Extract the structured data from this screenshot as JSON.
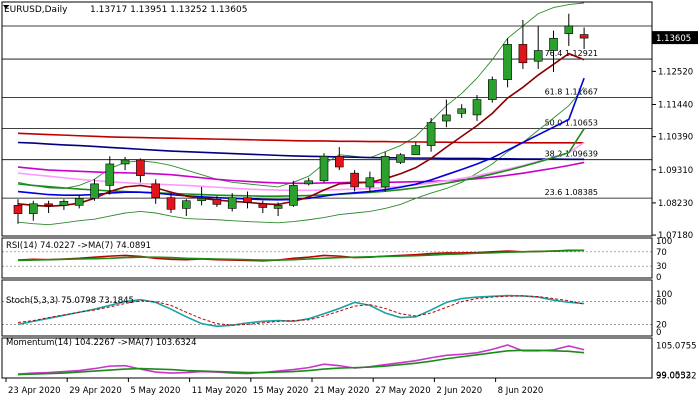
{
  "chart_data": {
    "type": "candlestick",
    "symbol_label": "EURUSD,Daily",
    "ohlc_label": "1.13717 1.13951 1.13252 1.13605",
    "price_axis": {
      "ylim": [
        1.0715,
        1.1475
      ],
      "ticks": [
        "1.13605",
        "1.12520",
        "1.11440",
        "1.10390",
        "1.09310",
        "1.08230",
        "1.07180"
      ],
      "tick_values": [
        1.13605,
        1.1252,
        1.1144,
        1.1039,
        1.0931,
        1.0823,
        1.0718
      ]
    },
    "x_ticks": [
      {
        "label": "23 Apr 2020",
        "index": 0
      },
      {
        "label": "29 Apr 2020",
        "index": 4
      },
      {
        "label": "5 May 2020",
        "index": 8
      },
      {
        "label": "11 May 2020",
        "index": 12
      },
      {
        "label": "15 May 2020",
        "index": 16
      },
      {
        "label": "21 May 2020",
        "index": 20
      },
      {
        "label": "27 May 2020",
        "index": 24
      },
      {
        "label": "2 Jun 2020",
        "index": 28
      },
      {
        "label": "8 Jun 2020",
        "index": 32
      }
    ],
    "candles": [
      {
        "o": 1.0815,
        "h": 1.0835,
        "l": 1.0755,
        "c": 1.0788
      },
      {
        "o": 1.0788,
        "h": 1.083,
        "l": 1.0765,
        "c": 1.082
      },
      {
        "o": 1.082,
        "h": 1.083,
        "l": 1.079,
        "c": 1.0815
      },
      {
        "o": 1.0815,
        "h": 1.0835,
        "l": 1.08,
        "c": 1.0828
      },
      {
        "o": 1.0815,
        "h": 1.085,
        "l": 1.0805,
        "c": 1.0838
      },
      {
        "o": 1.0838,
        "h": 1.09,
        "l": 1.083,
        "c": 1.0885
      },
      {
        "o": 1.088,
        "h": 1.0975,
        "l": 1.085,
        "c": 1.095
      },
      {
        "o": 1.095,
        "h": 1.0973,
        "l": 1.093,
        "c": 1.0963
      },
      {
        "o": 1.0963,
        "h": 1.0968,
        "l": 1.089,
        "c": 1.0912
      },
      {
        "o": 1.0885,
        "h": 1.09,
        "l": 1.082,
        "c": 1.084
      },
      {
        "o": 1.084,
        "h": 1.0855,
        "l": 1.079,
        "c": 1.0802
      },
      {
        "o": 1.0805,
        "h": 1.0835,
        "l": 1.078,
        "c": 1.083
      },
      {
        "o": 1.083,
        "h": 1.0875,
        "l": 1.0815,
        "c": 1.0838
      },
      {
        "o": 1.0835,
        "h": 1.0845,
        "l": 1.081,
        "c": 1.0818
      },
      {
        "o": 1.0805,
        "h": 1.0855,
        "l": 1.0795,
        "c": 1.084
      },
      {
        "o": 1.084,
        "h": 1.086,
        "l": 1.0805,
        "c": 1.0825
      },
      {
        "o": 1.082,
        "h": 1.083,
        "l": 1.079,
        "c": 1.0808
      },
      {
        "o": 1.0805,
        "h": 1.0825,
        "l": 1.078,
        "c": 1.0815
      },
      {
        "o": 1.0815,
        "h": 1.0895,
        "l": 1.081,
        "c": 1.088
      },
      {
        "o": 1.0885,
        "h": 1.0905,
        "l": 1.088,
        "c": 1.0895
      },
      {
        "o": 1.0895,
        "h": 1.0985,
        "l": 1.089,
        "c": 1.0975
      },
      {
        "o": 1.0975,
        "h": 1.1005,
        "l": 1.093,
        "c": 1.094
      },
      {
        "o": 1.092,
        "h": 1.093,
        "l": 1.086,
        "c": 1.0875
      },
      {
        "o": 1.0875,
        "h": 1.0925,
        "l": 1.086,
        "c": 1.0905
      },
      {
        "o": 1.0875,
        "h": 1.099,
        "l": 1.086,
        "c": 1.0975
      },
      {
        "o": 1.0955,
        "h": 1.0985,
        "l": 1.095,
        "c": 1.098
      },
      {
        "o": 1.098,
        "h": 1.102,
        "l": 1.0985,
        "c": 1.101
      },
      {
        "o": 1.101,
        "h": 1.11,
        "l": 1.099,
        "c": 1.1085
      },
      {
        "o": 1.109,
        "h": 1.116,
        "l": 1.107,
        "c": 1.111
      },
      {
        "o": 1.1115,
        "h": 1.1145,
        "l": 1.11,
        "c": 1.113
      },
      {
        "o": 1.111,
        "h": 1.1175,
        "l": 1.109,
        "c": 1.116
      },
      {
        "o": 1.116,
        "h": 1.1235,
        "l": 1.115,
        "c": 1.1225
      },
      {
        "o": 1.1225,
        "h": 1.136,
        "l": 1.12,
        "c": 1.134
      },
      {
        "o": 1.134,
        "h": 1.142,
        "l": 1.126,
        "c": 1.128
      },
      {
        "o": 1.1285,
        "h": 1.14,
        "l": 1.126,
        "c": 1.132
      },
      {
        "o": 1.132,
        "h": 1.1385,
        "l": 1.125,
        "c": 1.136
      },
      {
        "o": 1.1375,
        "h": 1.144,
        "l": 1.1335,
        "c": 1.14
      },
      {
        "o": 1.1372,
        "h": 1.1395,
        "l": 1.1325,
        "c": 1.13605
      }
    ],
    "bull_color": "#2ca02c",
    "bear_color": "#e0141a",
    "fib_levels": [
      {
        "label": "76.4 1.12921",
        "value": 1.12921
      },
      {
        "label": "61.8 1.11667",
        "value": 1.11667
      },
      {
        "label": "50.0 1.10653",
        "value": 1.10653
      },
      {
        "label": "38.2 1.09639",
        "value": 1.09639
      },
      {
        "label": "23.6 1.08385",
        "value": 1.08385
      }
    ],
    "horizontal_lines": [
      1.14
    ],
    "current_price_label": "1.13605",
    "moving_averages": [
      {
        "color": "#c00000",
        "values": [
          1.105,
          1.1048,
          1.1046,
          1.1044,
          1.1042,
          1.104,
          1.1038,
          1.1037,
          1.1036,
          1.1035,
          1.1034,
          1.1033,
          1.1032,
          1.1031,
          1.103,
          1.1029,
          1.1028,
          1.1027,
          1.1026,
          1.1025,
          1.1025,
          1.1024,
          1.1024,
          1.1023,
          1.1023,
          1.1022,
          1.1022,
          1.1021,
          1.1021,
          1.102,
          1.102,
          1.102,
          1.102,
          1.1019,
          1.1019,
          1.1019,
          1.1019,
          1.1019
        ]
      },
      {
        "color": "#000080",
        "values": [
          1.102,
          1.1018,
          1.1015,
          1.1012,
          1.101,
          1.1007,
          1.1004,
          1.1001,
          1.0998,
          1.0995,
          1.0992,
          1.099,
          1.0988,
          1.0986,
          1.0984,
          1.0982,
          1.098,
          1.0978,
          1.0976,
          1.0975,
          1.0974,
          1.0973,
          1.0972,
          1.0971,
          1.097,
          1.097,
          1.0969,
          1.0969,
          1.0968,
          1.0968,
          1.0968,
          1.0967,
          1.0967,
          1.0966,
          1.0966,
          1.0966,
          1.0965,
          1.0965
        ]
      },
      {
        "color": "#cc00cc",
        "values": [
          1.094,
          1.0935,
          1.093,
          1.0928,
          1.0926,
          1.0924,
          1.0922,
          1.0921,
          1.092,
          1.0918,
          1.0915,
          1.091,
          1.0905,
          1.09,
          1.0896,
          1.0893,
          1.089,
          1.0888,
          1.0887,
          1.0887,
          1.0888,
          1.0889,
          1.089,
          1.089,
          1.089,
          1.0891,
          1.0892,
          1.0893,
          1.0895,
          1.0898,
          1.0902,
          1.0907,
          1.0913,
          1.092,
          1.0928,
          1.0936,
          1.0945,
          1.0955
        ]
      },
      {
        "color": "#ff99ff",
        "values": [
          1.092,
          1.0915,
          1.091,
          1.0905,
          1.09,
          1.0896,
          1.0892,
          1.0889,
          1.0886,
          1.0884,
          1.0882,
          1.088,
          1.0877,
          1.0874,
          1.0871,
          1.0868,
          1.0866,
          1.0865,
          1.0864,
          1.0864,
          1.0865,
          1.0866,
          1.0868,
          1.087,
          1.0873,
          1.0877,
          1.0882,
          1.0888,
          1.0895,
          1.0903,
          1.0912,
          1.0922,
          1.0933,
          1.0945,
          1.0958,
          1.0972,
          1.0987,
          1.102
        ]
      },
      {
        "color": "#1a8c1a",
        "values": [
          1.0885,
          1.088,
          1.0876,
          1.0872,
          1.0868,
          1.0865,
          1.0862,
          1.086,
          1.0858,
          1.0856,
          1.0854,
          1.0852,
          1.085,
          1.0848,
          1.0847,
          1.0846,
          1.0845,
          1.0845,
          1.0846,
          1.0847,
          1.0849,
          1.0851,
          1.0854,
          1.0857,
          1.0861,
          1.0866,
          1.0872,
          1.0879,
          1.0887,
          1.0896,
          1.0906,
          1.0917,
          1.0929,
          1.0942,
          1.0956,
          1.0971,
          1.0987,
          1.1065
        ]
      },
      {
        "color": "#0000dd",
        "values": [
          1.086,
          1.0855,
          1.085,
          1.0848,
          1.0848,
          1.085,
          1.0855,
          1.0858,
          1.0858,
          1.0855,
          1.085,
          1.0846,
          1.0843,
          1.084,
          1.0838,
          1.0836,
          1.0834,
          1.0833,
          1.0834,
          1.0838,
          1.0845,
          1.0852,
          1.0856,
          1.086,
          1.0866,
          1.0874,
          1.0884,
          1.0898,
          1.0915,
          1.0932,
          1.095,
          1.097,
          1.0995,
          1.102,
          1.1045,
          1.107,
          1.1095,
          1.123
        ]
      },
      {
        "color": "#8b0000",
        "values": [
          1.082,
          1.0815,
          1.0812,
          1.0815,
          1.0822,
          1.0838,
          1.086,
          1.0875,
          1.088,
          1.0872,
          1.0858,
          1.0845,
          1.0838,
          1.0832,
          1.0828,
          1.0825,
          1.082,
          1.0818,
          1.0828,
          1.0842,
          1.0865,
          1.0885,
          1.0888,
          1.089,
          1.0902,
          1.0918,
          1.0938,
          1.0968,
          1.1005,
          1.104,
          1.1075,
          1.1115,
          1.1165,
          1.12,
          1.124,
          1.1275,
          1.131,
          1.129
        ]
      }
    ],
    "bands": {
      "color": "#2e8b2e",
      "upper": [
        1.089,
        1.088,
        1.0872,
        1.087,
        1.088,
        1.09,
        1.0935,
        1.0955,
        1.096,
        1.0955,
        1.0945,
        1.093,
        1.0915,
        1.09,
        1.089,
        1.0885,
        1.088,
        1.0875,
        1.089,
        1.091,
        1.095,
        1.098,
        1.0975,
        1.097,
        1.099,
        1.101,
        1.104,
        1.109,
        1.114,
        1.118,
        1.123,
        1.129,
        1.136,
        1.14,
        1.144,
        1.146,
        1.147,
        1.1475
      ],
      "lower": [
        1.076,
        1.0755,
        1.0752,
        1.0758,
        1.0765,
        1.077,
        1.078,
        1.079,
        1.0795,
        1.079,
        1.078,
        1.0772,
        1.077,
        1.0768,
        1.0765,
        1.0762,
        1.076,
        1.0758,
        1.0762,
        1.0768,
        1.0775,
        1.0785,
        1.079,
        1.0795,
        1.0805,
        1.0818,
        1.0838,
        1.0855,
        1.087,
        1.089,
        1.092,
        1.095,
        1.099,
        1.102,
        1.106,
        1.11,
        1.114,
        1.12
      ]
    },
    "rsi_panel": {
      "label": "RSI(14) 74.0227  ->MA(7) 74.0891",
      "ylim": [
        0,
        100
      ],
      "ticks": [
        {
          "label": "100",
          "value": 100
        },
        {
          "label": "70",
          "value": 70
        },
        {
          "label": "30",
          "value": 30
        },
        {
          "label": "0",
          "value": 0
        }
      ],
      "level_lines": [
        70,
        30
      ],
      "series": [
        {
          "color": "#c00000",
          "values": [
            47,
            49,
            48,
            50,
            52,
            55,
            58,
            60,
            57,
            52,
            49,
            48,
            50,
            48,
            47,
            46,
            45,
            47,
            52,
            55,
            60,
            58,
            54,
            55,
            58,
            60,
            62,
            65,
            67,
            67,
            68,
            70,
            72,
            70,
            71,
            72,
            74,
            74
          ]
        },
        {
          "color": "#1a8c1a",
          "values": [
            46,
            47,
            48,
            49,
            50,
            51,
            52,
            54,
            55,
            55,
            54,
            52,
            51,
            50,
            49,
            48,
            47,
            47,
            48,
            50,
            52,
            54,
            55,
            56,
            57,
            58,
            59,
            61,
            63,
            64,
            66,
            67,
            69,
            70,
            71,
            72,
            73,
            74
          ]
        }
      ]
    },
    "stoch_panel": {
      "label": "Stoch(5,3,3) 75.0798 73.1845",
      "ylim": [
        0,
        100
      ],
      "ticks": [
        {
          "label": "100",
          "value": 100
        },
        {
          "label": "80",
          "value": 80
        },
        {
          "label": "20",
          "value": 20
        },
        {
          "label": "0",
          "value": 0
        }
      ],
      "level_lines": [
        80,
        20
      ],
      "series": [
        {
          "color": "#1aa3a3",
          "values": [
            20,
            28,
            36,
            44,
            52,
            60,
            70,
            80,
            85,
            78,
            60,
            40,
            22,
            15,
            18,
            24,
            28,
            30,
            28,
            35,
            48,
            62,
            78,
            70,
            50,
            38,
            40,
            58,
            78,
            88,
            92,
            94,
            96,
            95,
            92,
            84,
            78,
            75
          ]
        },
        {
          "color": "#c00000",
          "dashed": true,
          "values": [
            25,
            30,
            38,
            45,
            52,
            58,
            66,
            75,
            82,
            80,
            70,
            52,
            35,
            22,
            18,
            20,
            24,
            28,
            30,
            32,
            42,
            55,
            68,
            72,
            62,
            48,
            42,
            50,
            65,
            80,
            88,
            92,
            94,
            95,
            93,
            88,
            82,
            73
          ]
        }
      ]
    },
    "momentum_panel": {
      "label": "Momentum(14) 104.2267  ->MA(7) 103.6324",
      "ylim": [
        98.9,
        106.2
      ],
      "ticks": [
        {
          "label": "105.0755",
          "value": 105.0755
        },
        {
          "label": "99.0532",
          "value": 99.0532
        },
        {
          "label": "99.00532",
          "value": 99.00532
        }
      ],
      "series": [
        {
          "color": "#cc33cc",
          "values": [
            99.3,
            99.5,
            99.6,
            99.8,
            100.0,
            100.4,
            100.9,
            101.0,
            100.3,
            99.7,
            99.5,
            99.6,
            99.8,
            99.7,
            99.5,
            99.4,
            99.6,
            99.9,
            100.2,
            100.6,
            101.3,
            101.0,
            100.5,
            100.8,
            101.2,
            101.6,
            102.0,
            102.6,
            103.1,
            103.3,
            103.6,
            104.3,
            105.2,
            104.0,
            104.0,
            104.2,
            105.0,
            104.23
          ]
        },
        {
          "color": "#1a8c1a",
          "values": [
            99.2,
            99.3,
            99.4,
            99.5,
            99.7,
            99.9,
            100.1,
            100.3,
            100.4,
            100.3,
            100.2,
            100.0,
            99.9,
            99.8,
            99.7,
            99.6,
            99.6,
            99.7,
            99.8,
            100.0,
            100.3,
            100.5,
            100.6,
            100.7,
            100.9,
            101.2,
            101.5,
            101.9,
            102.4,
            102.8,
            103.2,
            103.6,
            104.0,
            104.1,
            104.1,
            104.0,
            103.9,
            103.63
          ]
        }
      ]
    }
  }
}
